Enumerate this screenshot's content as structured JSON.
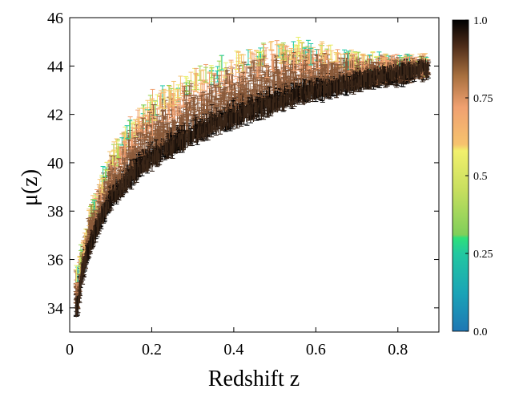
{
  "chart_data": {
    "type": "scatter",
    "title": "",
    "xlabel": "Redshift z",
    "ylabel": "μ(z)",
    "xlim": [
      0,
      0.9
    ],
    "ylim": [
      33,
      46
    ],
    "xticks": [
      0,
      0.2,
      0.4,
      0.6,
      0.8
    ],
    "xtick_labels": [
      "0",
      "0.2",
      "0.4",
      "0.6",
      "0.8"
    ],
    "yticks": [
      34,
      36,
      38,
      40,
      42,
      44,
      46
    ],
    "ytick_labels": [
      "34",
      "36",
      "38",
      "40",
      "42",
      "44",
      "46"
    ],
    "grid": false,
    "error_bars": true,
    "description_of_trend": "distance modulus rising steeply at low z and flattening toward z≈0.85",
    "series": [
      {
        "points": [
          [
            0.02,
            34.0
          ],
          [
            0.03,
            35.4
          ],
          [
            0.05,
            36.6
          ],
          [
            0.08,
            37.8
          ],
          [
            0.1,
            38.4
          ],
          [
            0.15,
            39.4
          ],
          [
            0.2,
            40.1
          ],
          [
            0.25,
            40.6
          ],
          [
            0.3,
            41.1
          ],
          [
            0.35,
            41.5
          ],
          [
            0.4,
            41.8
          ],
          [
            0.45,
            42.1
          ],
          [
            0.5,
            42.4
          ],
          [
            0.55,
            42.7
          ],
          [
            0.6,
            42.9
          ],
          [
            0.65,
            43.1
          ],
          [
            0.7,
            43.3
          ],
          [
            0.75,
            43.5
          ],
          [
            0.8,
            43.6
          ],
          [
            0.85,
            43.8
          ]
        ],
        "upper_envelope": [
          [
            0.02,
            35.5
          ],
          [
            0.05,
            38.0
          ],
          [
            0.1,
            40.3
          ],
          [
            0.15,
            41.6
          ],
          [
            0.2,
            42.5
          ],
          [
            0.3,
            43.6
          ],
          [
            0.4,
            44.3
          ],
          [
            0.5,
            44.8
          ],
          [
            0.6,
            44.8
          ],
          [
            0.7,
            44.3
          ],
          [
            0.8,
            44.1
          ]
        ]
      }
    ],
    "colorbar": {
      "min": 0.0,
      "max": 1.0,
      "ticks": [
        0.0,
        0.25,
        0.5,
        0.75,
        1.0
      ],
      "tick_labels": [
        "0.0",
        "0.25",
        "0.5",
        "0.75",
        "1.0"
      ],
      "colors": [
        "#1f77b4",
        "#1fc8a4",
        "#2ee07a",
        "#9ad24a",
        "#e9ef6a",
        "#f6c36e",
        "#f0a070",
        "#8a5a3a",
        "#2a1a10",
        "#000000"
      ]
    }
  }
}
